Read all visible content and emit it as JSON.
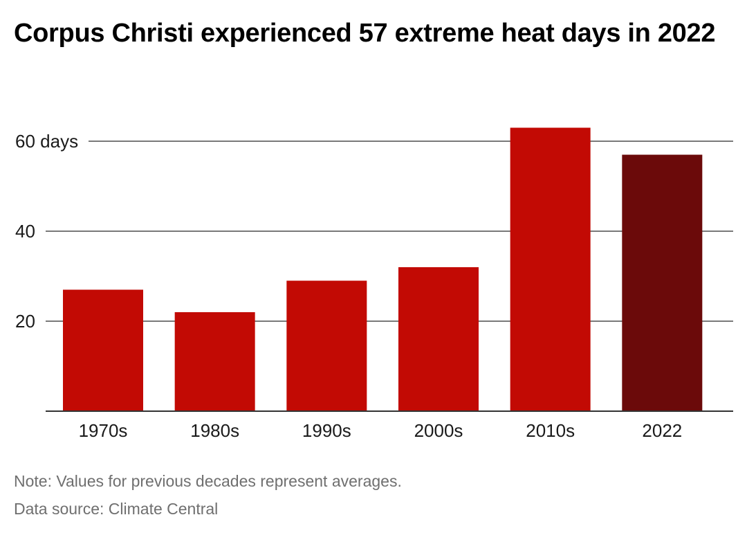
{
  "chart_data": {
    "type": "bar",
    "title": "Corpus Christi experienced 57 extreme heat days in 2022",
    "xlabel": "",
    "ylabel": "",
    "categories": [
      "1970s",
      "1980s",
      "1990s",
      "2000s",
      "2010s",
      "2022"
    ],
    "values": [
      27,
      22,
      29,
      32,
      63,
      57
    ],
    "ylim": [
      0,
      60
    ],
    "yticks": [
      {
        "value": 20,
        "label": "20"
      },
      {
        "value": 40,
        "label": "40"
      },
      {
        "value": 60,
        "label": "60 days"
      }
    ],
    "grid": true,
    "colors": {
      "bar": "#c20a04",
      "highlight": "#6b0a0a",
      "grid": "#4d4d4d",
      "axis": "#333333"
    },
    "highlight_category": "2022"
  },
  "footer": {
    "note": "Note: Values for previous decades represent averages.",
    "source": "Data source: Climate Central"
  }
}
